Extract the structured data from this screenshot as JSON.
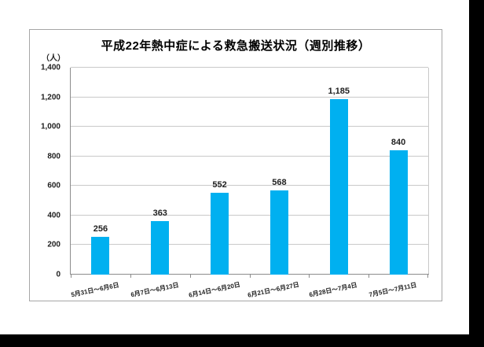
{
  "page": {
    "outer_background": "#000000",
    "canvas_background": "#ffffff"
  },
  "chart_data": {
    "type": "bar",
    "title": "平成22年熱中症による救急搬送状況（週別推移）",
    "unit_label": "（人）",
    "categories": [
      "5月31日～6月6日",
      "6月7日～6月13日",
      "6月14日～6月20日",
      "6月21日～6月27日",
      "6月28日～7月4日",
      "7月5日～7月11日"
    ],
    "values": [
      256,
      363,
      552,
      568,
      1185,
      840
    ],
    "data_labels": [
      "256",
      "363",
      "552",
      "568",
      "1,185",
      "840"
    ],
    "xlabel": "",
    "ylabel": "（人）",
    "ylim": [
      0,
      1400
    ],
    "ytick_interval": 200,
    "ytick_labels": [
      "0",
      "200",
      "400",
      "600",
      "800",
      "1,000",
      "1,200",
      "1,400"
    ],
    "grid": true,
    "legend": "none",
    "bar_color": "#00b0f0",
    "gridline_color": "#c9c9c9",
    "axis_color": "#8c8c8c",
    "text_color": "#1f1f1f",
    "border_color": "#a6a6a6"
  }
}
